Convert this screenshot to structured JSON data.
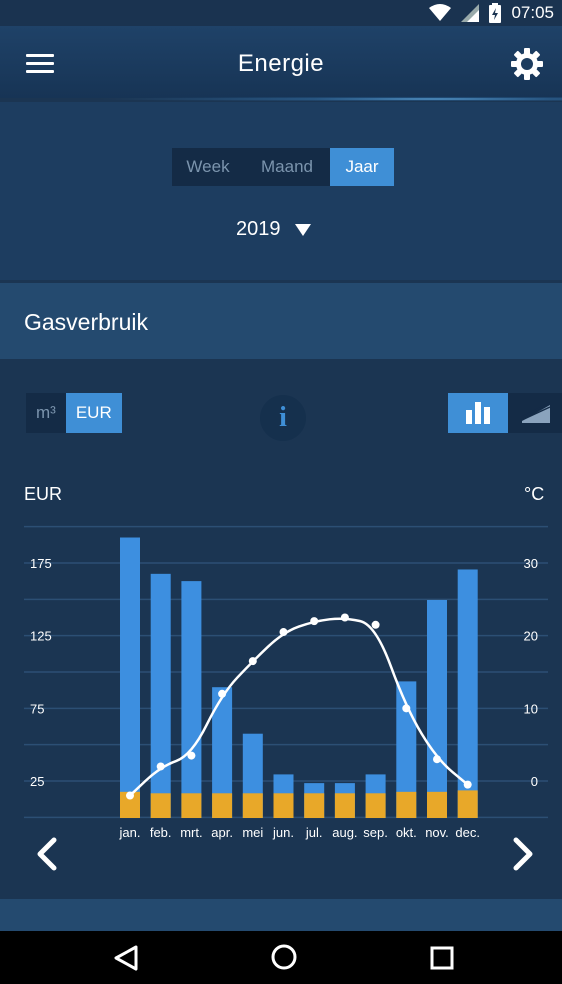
{
  "status": {
    "time": "07:05"
  },
  "header": {
    "title": "Energie"
  },
  "period": {
    "tabs": [
      {
        "label": "Week",
        "active": false
      },
      {
        "label": "Maand",
        "active": false
      },
      {
        "label": "Jaar",
        "active": true
      }
    ],
    "year": "2019"
  },
  "section": {
    "title": "Gasverbruik"
  },
  "units": {
    "options": [
      {
        "label": "m³",
        "active": false
      },
      {
        "label": "EUR",
        "active": true
      }
    ],
    "info_label": "i"
  },
  "chart_data": {
    "type": "bar",
    "ylabel": "EUR",
    "y2label": "°C",
    "categories": [
      "jan.",
      "feb.",
      "mrt.",
      "apr.",
      "mei",
      "jun.",
      "jul.",
      "aug.",
      "sep.",
      "okt.",
      "nov.",
      "dec."
    ],
    "ylim": [
      0,
      200
    ],
    "y2lim": [
      -7,
      40
    ],
    "yticks": [
      25,
      75,
      125,
      175
    ],
    "y2ticks": [
      0,
      10,
      20,
      30
    ],
    "series": [
      {
        "values": [
          193,
          168,
          163,
          90,
          58,
          30,
          24,
          24,
          30,
          94,
          150,
          171
        ],
        "color": "#3d8fe0"
      },
      {
        "values": [
          18,
          17,
          17,
          17,
          17,
          17,
          17,
          17,
          17,
          18,
          18,
          19
        ],
        "color": "#e8a829"
      },
      {
        "type": "line",
        "axis": "right",
        "values": [
          -2,
          2,
          3.5,
          12,
          16.5,
          20.5,
          22,
          22.5,
          21.5,
          10,
          3,
          -0.5
        ],
        "color": "#ffffff"
      }
    ],
    "grid": true,
    "legend": "none"
  }
}
